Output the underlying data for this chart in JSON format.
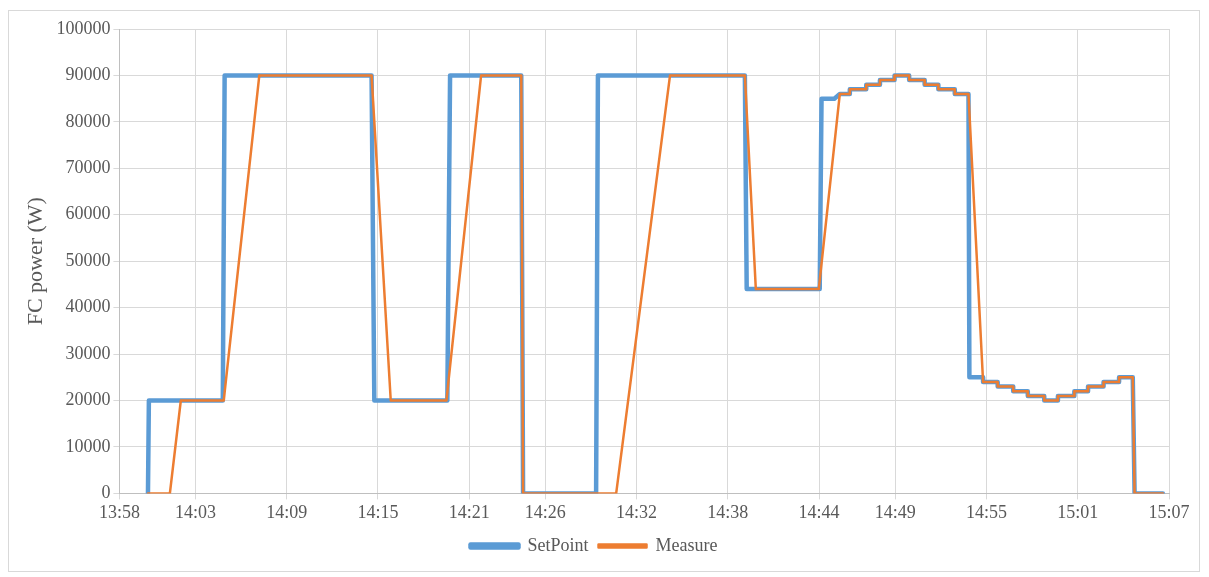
{
  "chart_data": {
    "type": "line",
    "ylabel": "FC power (W)",
    "grid": true,
    "legend": "bottom",
    "marker": "none",
    "line_style": "solid",
    "xlim": [
      13.9667,
      15.1167
    ],
    "xticks": [
      {
        "value": 13.9667,
        "label": "13:58"
      },
      {
        "value": 14.05,
        "label": "14:03"
      },
      {
        "value": 14.15,
        "label": "14:09"
      },
      {
        "value": 14.25,
        "label": "14:15"
      },
      {
        "value": 14.35,
        "label": "14:21"
      },
      {
        "value": 14.4333,
        "label": "14:26"
      },
      {
        "value": 14.5333,
        "label": "14:32"
      },
      {
        "value": 14.6333,
        "label": "14:38"
      },
      {
        "value": 14.7333,
        "label": "14:44"
      },
      {
        "value": 14.8167,
        "label": "14:49"
      },
      {
        "value": 14.9167,
        "label": "14:55"
      },
      {
        "value": 15.0167,
        "label": "15:01"
      },
      {
        "value": 15.1167,
        "label": "15:07"
      }
    ],
    "ylim": [
      0,
      100000
    ],
    "yticks": [
      0,
      10000,
      20000,
      30000,
      40000,
      50000,
      60000,
      70000,
      80000,
      90000,
      100000
    ],
    "series": [
      {
        "name": "SetPoint",
        "color": "#5b9bd5",
        "x": [
          13.998,
          13.999,
          14.08,
          14.082,
          14.243,
          14.246,
          14.326,
          14.329,
          14.407,
          14.409,
          14.489,
          14.491,
          14.652,
          14.654,
          14.734,
          14.736,
          14.75,
          14.756,
          14.767,
          14.767,
          14.785,
          14.785,
          14.8,
          14.8,
          14.816,
          14.816,
          14.832,
          14.832,
          14.849,
          14.849,
          14.864,
          14.864,
          14.882,
          14.882,
          14.897,
          14.898,
          14.913,
          14.913,
          14.929,
          14.929,
          14.946,
          14.946,
          14.962,
          14.962,
          14.98,
          14.98,
          14.995,
          14.995,
          15.013,
          15.013,
          15.028,
          15.028,
          15.045,
          15.045,
          15.062,
          15.062,
          15.077,
          15.079,
          15.11
        ],
        "values": [
          0,
          20000,
          20000,
          90000,
          90000,
          20000,
          20000,
          90000,
          90000,
          0,
          0,
          90000,
          90000,
          44000,
          44000,
          85000,
          85000,
          86000,
          86000,
          87000,
          87000,
          88000,
          88000,
          89000,
          89000,
          90000,
          90000,
          89000,
          89000,
          88000,
          88000,
          87000,
          87000,
          86000,
          86000,
          25000,
          25000,
          24000,
          24000,
          23000,
          23000,
          22000,
          22000,
          21000,
          21000,
          20000,
          20000,
          21000,
          21000,
          22000,
          22000,
          23000,
          23000,
          24000,
          24000,
          25000,
          25000,
          0,
          0
        ]
      },
      {
        "name": "Measure",
        "color": "#ed7d31",
        "x": [
          13.998,
          14.022,
          14.034,
          14.081,
          14.12,
          14.243,
          14.264,
          14.325,
          14.363,
          14.407,
          14.409,
          14.511,
          14.57,
          14.652,
          14.664,
          14.733,
          14.756,
          14.767,
          14.767,
          14.785,
          14.785,
          14.8,
          14.8,
          14.816,
          14.816,
          14.832,
          14.832,
          14.849,
          14.849,
          14.864,
          14.864,
          14.882,
          14.882,
          14.897,
          14.913,
          14.929,
          14.929,
          14.946,
          14.946,
          14.962,
          14.962,
          14.98,
          14.98,
          14.995,
          14.995,
          15.013,
          15.013,
          15.028,
          15.028,
          15.045,
          15.045,
          15.062,
          15.062,
          15.077,
          15.079,
          15.11
        ],
        "values": [
          0,
          0,
          20000,
          20000,
          90000,
          90000,
          20000,
          20000,
          90000,
          90000,
          0,
          0,
          90000,
          90000,
          44000,
          44000,
          86000,
          86000,
          87000,
          87000,
          88000,
          88000,
          89000,
          89000,
          90000,
          90000,
          89000,
          89000,
          88000,
          88000,
          87000,
          87000,
          86000,
          86000,
          24000,
          24000,
          23000,
          23000,
          22000,
          22000,
          21000,
          21000,
          20000,
          20000,
          21000,
          21000,
          22000,
          22000,
          23000,
          23000,
          24000,
          24000,
          25000,
          25000,
          0,
          0
        ]
      }
    ]
  }
}
